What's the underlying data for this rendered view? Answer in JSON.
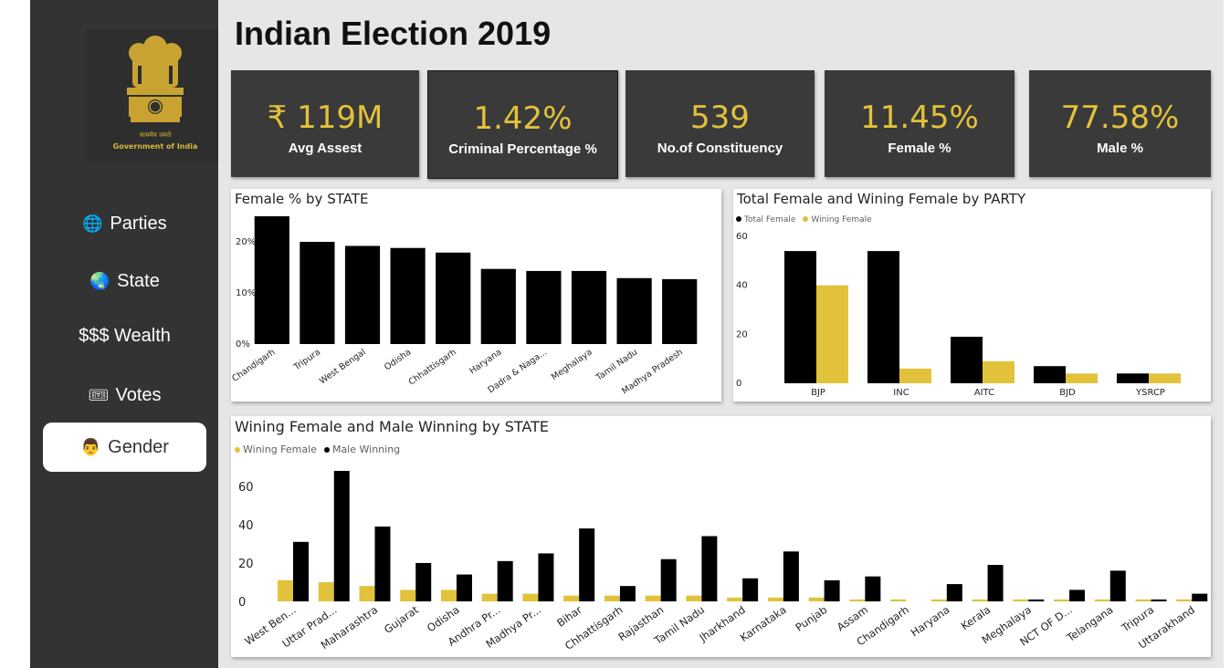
{
  "title": "Indian Election 2019",
  "emblem": {
    "motto": "सत्यमेव जयते",
    "caption": "Government of India"
  },
  "nav": [
    {
      "icon": "🌐",
      "icon_name": "globe-icon",
      "label": "Parties"
    },
    {
      "icon": "🌏",
      "icon_name": "earth-icon",
      "label": "State"
    },
    {
      "icon": "",
      "icon_name": "",
      "label": "$$$ Wealth"
    },
    {
      "icon": "🎟",
      "icon_name": "ticket-icon",
      "label": "Votes"
    },
    {
      "icon": "👨",
      "icon_name": "person-icon",
      "label": "Gender"
    }
  ],
  "kpis": [
    {
      "value": "₹ 119M",
      "label": "Avg Assest"
    },
    {
      "value": "1.42%",
      "label": "Criminal Percentage %"
    },
    {
      "value": "539",
      "label": "No.of Constituency"
    },
    {
      "value": "11.45%",
      "label": "Female %"
    },
    {
      "value": "77.58%",
      "label": "Male %"
    }
  ],
  "colors": {
    "black": "#000000",
    "gold": "#e2c23a",
    "card": "#3a3a3a",
    "sidebar": "#333333"
  },
  "chart_data": [
    {
      "type": "bar",
      "title": "Female % by STATE",
      "categories": [
        "Chandigarh",
        "Tripura",
        "West Bengal",
        "Odisha",
        "Chhattisgarh",
        "Haryana",
        "Dadra & Naga...",
        "Meghalaya",
        "Tamil Nadu",
        "Madhya Pradesh"
      ],
      "values": [
        25,
        20,
        19.2,
        18.8,
        17.9,
        14.7,
        14.3,
        14.3,
        12.9,
        12.7
      ],
      "yticks": [
        "0%",
        "10%",
        "20%"
      ],
      "ylim": [
        0,
        25
      ]
    },
    {
      "type": "bar",
      "title": "Total Female and Wining Female by PARTY",
      "categories": [
        "BJP",
        "INC",
        "AITC",
        "BJD",
        "YSRCP"
      ],
      "series": [
        {
          "name": "Total Female",
          "values": [
            54,
            54,
            19,
            7,
            4
          ]
        },
        {
          "name": "Wining Female",
          "values": [
            40,
            6,
            9,
            4,
            4
          ]
        }
      ],
      "yticks": [
        "0",
        "20",
        "40",
        "60"
      ],
      "ylim": [
        0,
        60
      ]
    },
    {
      "type": "bar",
      "title": "Wining Female and Male Winning by STATE",
      "categories": [
        "West Ben...",
        "Uttar Prad...",
        "Maharashtra",
        "Gujarat",
        "Odisha",
        "Andhra Pr...",
        "Madhya Pr...",
        "Bihar",
        "Chhattisgarh",
        "Rajasthan",
        "Tamil Nadu",
        "Jharkhand",
        "Karnataka",
        "Punjab",
        "Assam",
        "Chandigarh",
        "Haryana",
        "Kerala",
        "Meghalaya",
        "NCT OF D...",
        "Telangana",
        "Tripura",
        "Uttarakhand"
      ],
      "series": [
        {
          "name": "Wining Female",
          "values": [
            11,
            10,
            8,
            6,
            6,
            4,
            4,
            3,
            3,
            3,
            3,
            2,
            2,
            2,
            1,
            1,
            1,
            1,
            1,
            1,
            1,
            1,
            1
          ]
        },
        {
          "name": "Male Winning",
          "values": [
            31,
            68,
            39,
            20,
            14,
            21,
            25,
            38,
            8,
            22,
            34,
            12,
            26,
            11,
            13,
            0,
            9,
            19,
            1,
            6,
            16,
            1,
            4
          ]
        }
      ],
      "yticks": [
        "0",
        "20",
        "40",
        "60"
      ],
      "ylim": [
        0,
        68
      ]
    }
  ]
}
